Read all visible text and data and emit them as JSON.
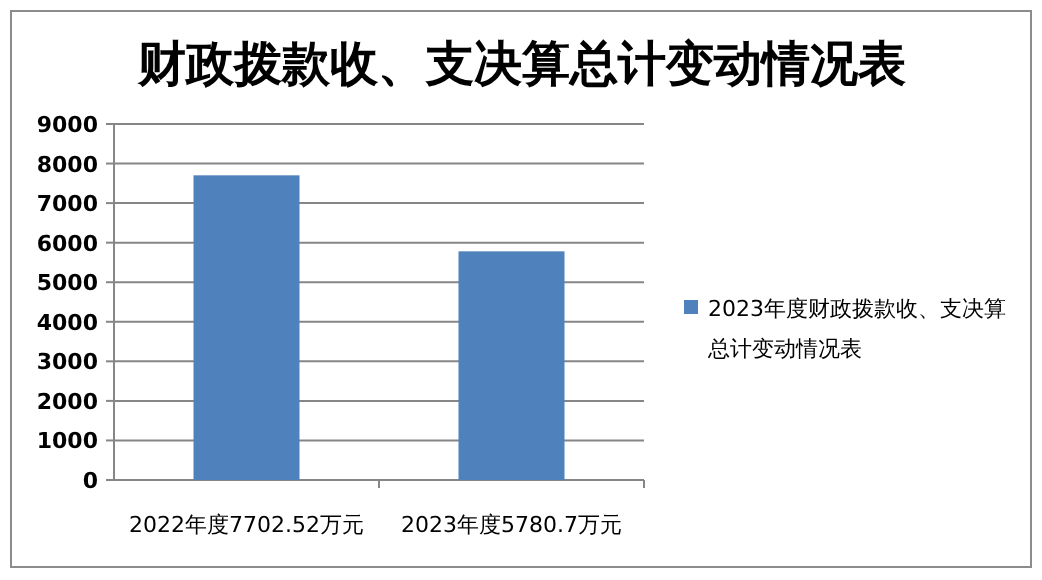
{
  "chart_data": {
    "type": "bar",
    "title": "财政拨款收、支决算总计变动情况表",
    "categories": [
      "2022年度7702.52万元",
      "2023年度5780.7万元"
    ],
    "series": [
      {
        "name": "2023年度财政拨款收、支决算总计变动情况表",
        "color": "#4f81bd",
        "values": [
          7702.52,
          5780.7
        ]
      }
    ],
    "ylim": [
      0,
      9000
    ],
    "yticks": [
      0,
      1000,
      2000,
      3000,
      4000,
      5000,
      6000,
      7000,
      8000,
      9000
    ],
    "grid": "y",
    "legend": "right"
  }
}
